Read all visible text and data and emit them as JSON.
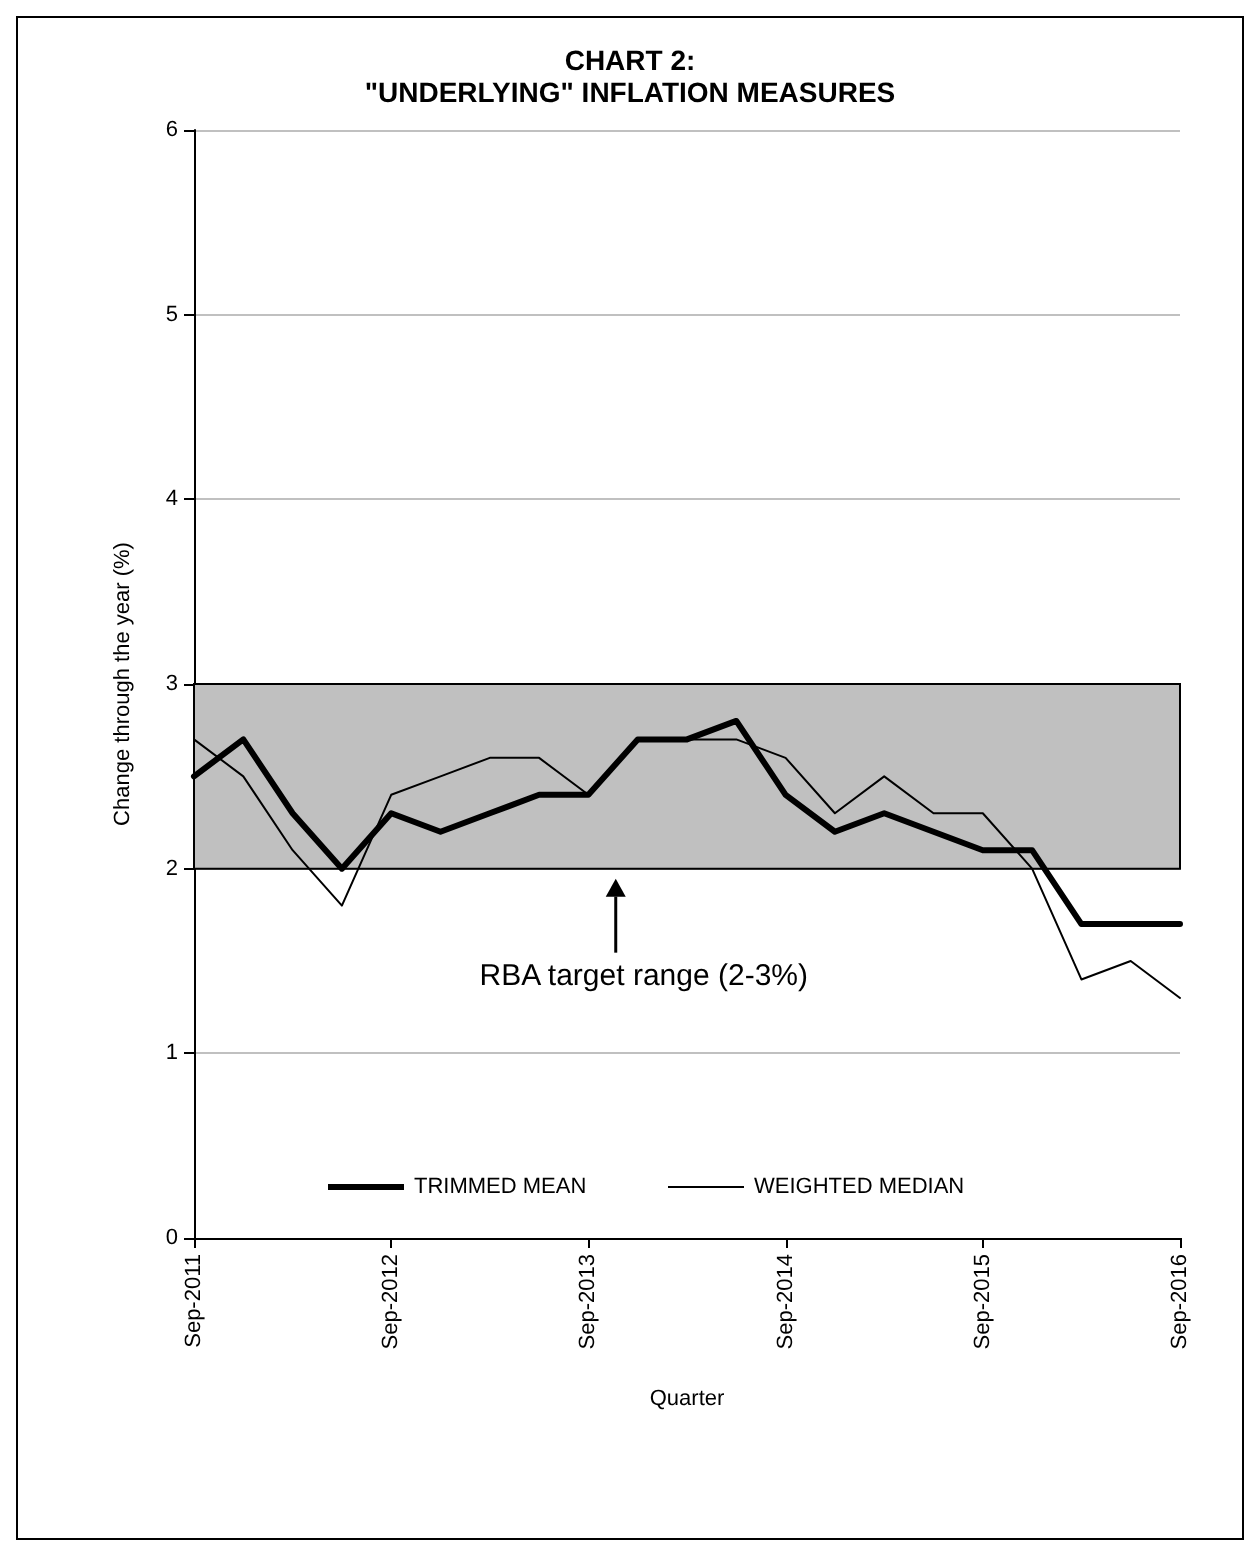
{
  "chart_data": {
    "type": "line",
    "title": "CHART 2:\n\"UNDERLYING\" INFLATION MEASURES",
    "xlabel": "Quarter",
    "ylabel": "Change through the year (%)",
    "categories": [
      "Sep-2011",
      null,
      null,
      null,
      "Sep-2012",
      null,
      null,
      null,
      "Sep-2013",
      null,
      null,
      null,
      "Sep-2014",
      null,
      null,
      null,
      "Sep-2015",
      null,
      null,
      null,
      "Sep-2016"
    ],
    "series": [
      {
        "name": "TRIMMED MEAN",
        "color": "#000000",
        "values": [
          2.5,
          2.7,
          2.3,
          2.0,
          2.3,
          2.2,
          2.3,
          2.4,
          2.4,
          2.7,
          2.7,
          2.8,
          2.4,
          2.2,
          2.3,
          2.2,
          2.1,
          2.1,
          1.7,
          1.7,
          1.7
        ]
      },
      {
        "name": "WEIGHTED MEDIAN",
        "color": "#000000",
        "values": [
          2.7,
          2.5,
          2.1,
          1.8,
          2.4,
          2.5,
          2.6,
          2.6,
          2.4,
          2.7,
          2.7,
          2.7,
          2.6,
          2.3,
          2.5,
          2.3,
          2.3,
          2.0,
          1.4,
          1.5,
          1.3
        ]
      }
    ],
    "ylim": [
      0,
      6
    ],
    "yticks": [
      0,
      1,
      2,
      3,
      4,
      5,
      6
    ],
    "bands": [
      {
        "axis": "y",
        "from": 2,
        "to": 3,
        "label": "RBA target range (2-3%)",
        "color": "#c0c0c0"
      }
    ],
    "grid": "y",
    "legend": "bottom",
    "marker": "none",
    "line_style": "solid"
  }
}
